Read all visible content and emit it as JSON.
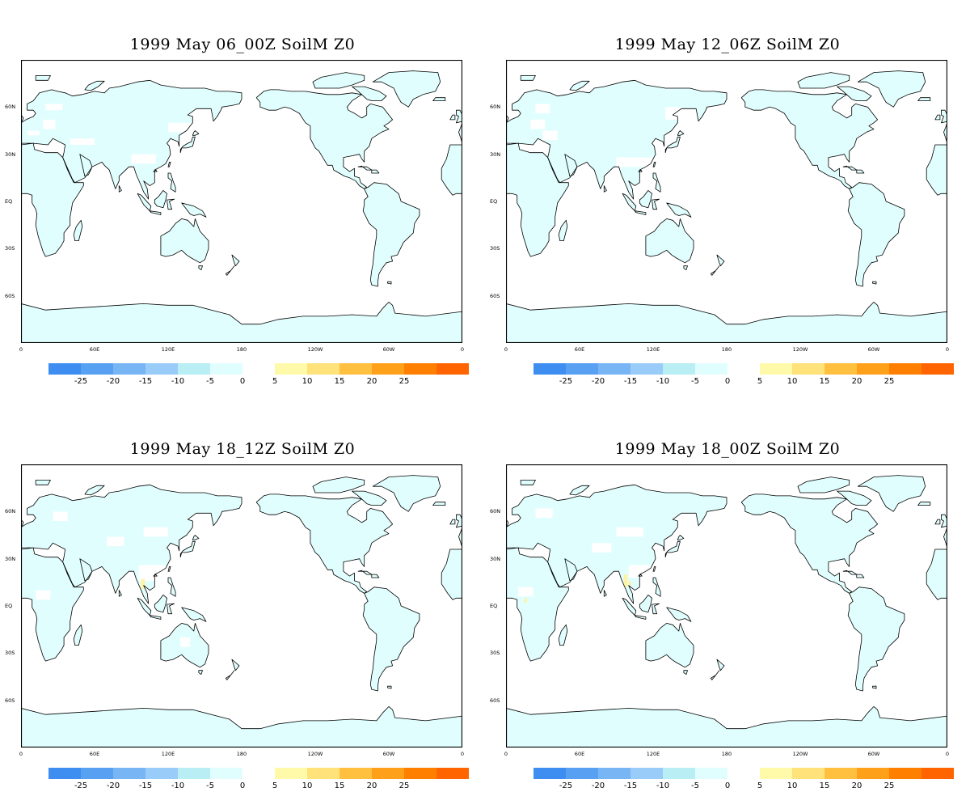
{
  "panels": [
    {
      "title": "1999 May 06_00Z SoilM Z0",
      "variant": 0
    },
    {
      "title": "1999 May 12_06Z SoilM Z0",
      "variant": 1
    },
    {
      "title": "1999 May 18_12Z SoilM Z0",
      "variant": 2
    },
    {
      "title": "1999 May 18_00Z SoilM Z0",
      "variant": 3
    }
  ],
  "map": {
    "lat_labels": [
      "60N",
      "30N",
      "EQ",
      "30S",
      "60S"
    ],
    "lon_labels": [
      "0",
      "60E",
      "120E",
      "180",
      "120W",
      "60W",
      "0"
    ]
  },
  "colorbar": {
    "negative": {
      "colors": [
        "#3d8ef0",
        "#57a0f2",
        "#78b5f5",
        "#99ccf8",
        "#b8eef4",
        "#e0fefe"
      ],
      "ticks": [
        "-25",
        "-20",
        "-15",
        "-10",
        "-5",
        "0"
      ]
    },
    "positive": {
      "colors": [
        "#fffaaa",
        "#ffe27a",
        "#ffc040",
        "#ffa01a",
        "#ff8000",
        "#ff6400"
      ],
      "ticks": [
        "5",
        "10",
        "15",
        "20",
        "25"
      ]
    }
  },
  "colors": {
    "land_fill": "#e0fefe",
    "coast": "#000000",
    "anomaly_yellow": "#fff3a0"
  }
}
